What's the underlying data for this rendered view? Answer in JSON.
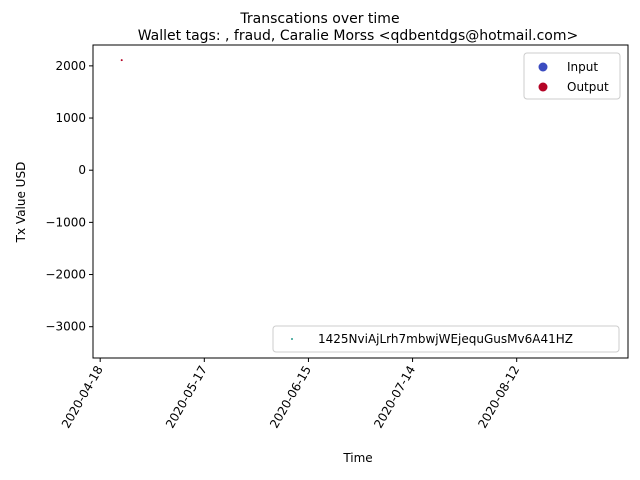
{
  "chart_data": {
    "type": "scatter",
    "suptitle": "Transcations over time",
    "title": "Wallet tags: , fraud, Caralie Morss <qdbentdgs@hotmail.com>",
    "xlabel": "Time",
    "ylabel": "Tx Value USD",
    "xlim": [
      "2020-04-16",
      "2020-09-12"
    ],
    "ylim": [
      -3600,
      2400
    ],
    "xticks": [
      "2020-04-18",
      "2020-05-17",
      "2020-06-15",
      "2020-07-14",
      "2020-08-12"
    ],
    "yticks": [
      2000,
      1000,
      0,
      -1000,
      -2000,
      -3000
    ],
    "ytick_labels": [
      "2000",
      "1000",
      "0",
      "−1000",
      "−2000",
      "−3000"
    ],
    "series": [
      {
        "name": "Output",
        "color": "#b40426",
        "points": [
          {
            "x": "2020-04-24",
            "y": 2110
          }
        ]
      },
      {
        "name": "1425NviAjLrh7mbwjWEjequGusMv6A41HZ",
        "color": "#2a9d8f",
        "points": []
      }
    ],
    "legends": [
      {
        "placement": "top-right",
        "entries": [
          {
            "label": "Input",
            "color": "#3b4cc0"
          },
          {
            "label": "Output",
            "color": "#b40426"
          }
        ]
      },
      {
        "placement": "bottom-right",
        "entries": [
          {
            "label": "1425NviAjLrh7mbwjWEjequGusMv6A41HZ",
            "color": "#2a9d8f"
          }
        ]
      }
    ],
    "grid": false
  }
}
